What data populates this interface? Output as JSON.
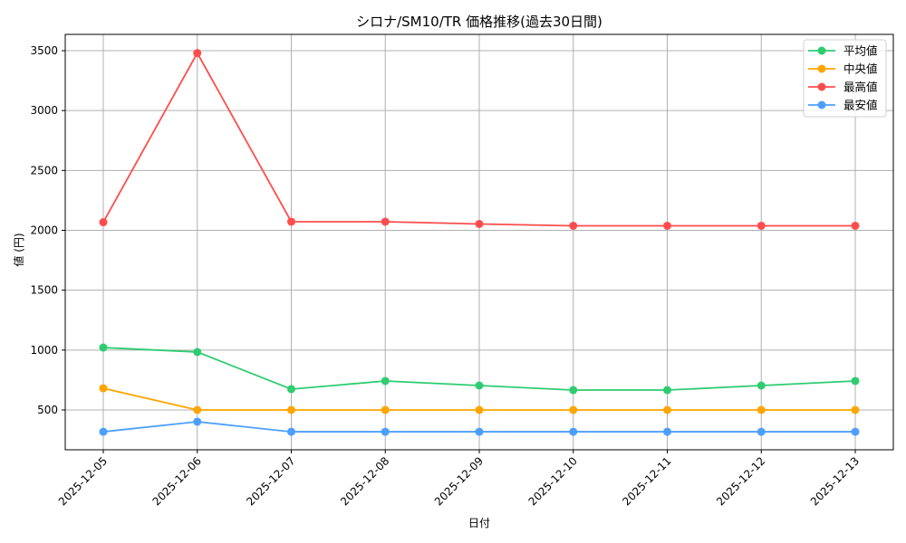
{
  "chart_data": {
    "type": "line",
    "title": "シロナ/SM10/TR 価格推移(過去30日間)",
    "xlabel": "日付",
    "ylabel": "値 (円)",
    "x": [
      "2025-12-05",
      "2025-12-06",
      "2025-12-07",
      "2025-12-08",
      "2025-12-09",
      "2025-12-10",
      "2025-12-11",
      "2025-12-12",
      "2025-12-13"
    ],
    "yticks": [
      500,
      1000,
      1500,
      2000,
      2500,
      3000,
      3500
    ],
    "ylim": [
      155,
      3640
    ],
    "grid": true,
    "legend_position": "upper right",
    "series": [
      {
        "name": "平均値",
        "color": "#2ecc71",
        "values": [
          1021,
          984,
          674,
          742,
          704,
          666,
          666,
          704,
          742
        ]
      },
      {
        "name": "中央値",
        "color": "#ffa500",
        "values": [
          681,
          500,
          500,
          500,
          500,
          500,
          500,
          500,
          500
        ]
      },
      {
        "name": "最高値",
        "color": "#ff4d4d",
        "values": [
          2068,
          3480,
          2072,
          2072,
          2053,
          2038,
          2038,
          2038,
          2038
        ]
      },
      {
        "name": "最安値",
        "color": "#4d9fff",
        "values": [
          318,
          402,
          318,
          318,
          318,
          318,
          318,
          318,
          318
        ]
      }
    ]
  }
}
